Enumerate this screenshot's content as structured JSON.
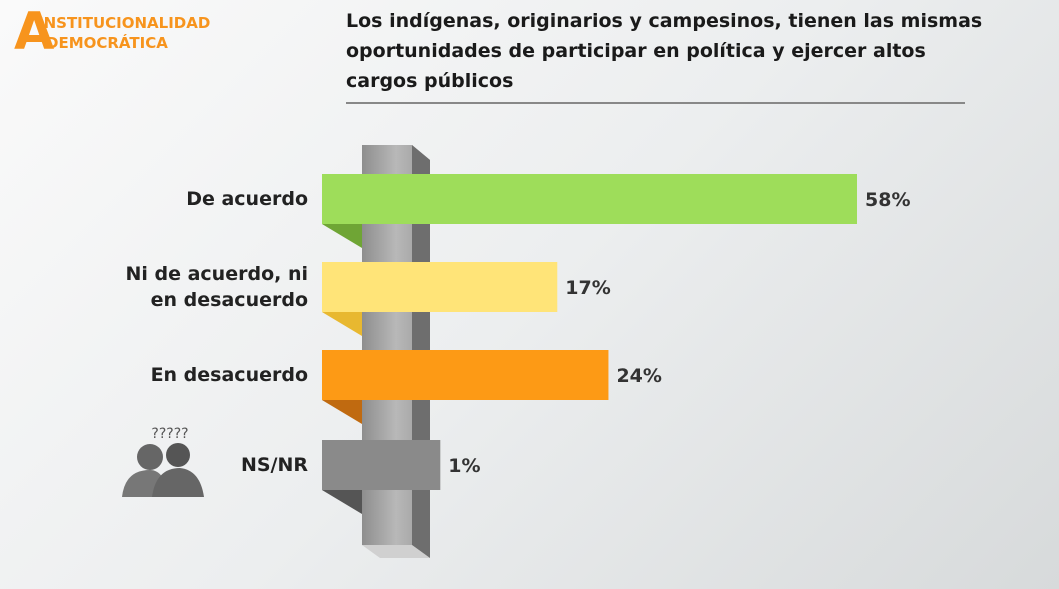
{
  "logo": {
    "letter": "A",
    "line1": "INSTITUCIONALIDAD",
    "line2": "DEMOCRÁTICA"
  },
  "icon_text": "?????",
  "chart_data": {
    "type": "bar",
    "orientation": "horizontal",
    "title": "Los indígenas, originarios y campesinos, tienen las mismas oportunidades de participar en política y ejercer altos cargos públicos",
    "categories": [
      "De acuerdo",
      "Ni de acuerdo, ni en desacuerdo",
      "En desacuerdo",
      "NS/NR"
    ],
    "values": [
      58,
      17,
      24,
      1
    ],
    "value_labels": [
      "58%",
      "17%",
      "24%",
      "1%"
    ],
    "colors": [
      "#9edd5a",
      "#ffe478",
      "#fd9a15",
      "#8a8a8a"
    ],
    "shadow_colors": [
      "#6fa535",
      "#e8b830",
      "#c06a10",
      "#555555"
    ]
  }
}
